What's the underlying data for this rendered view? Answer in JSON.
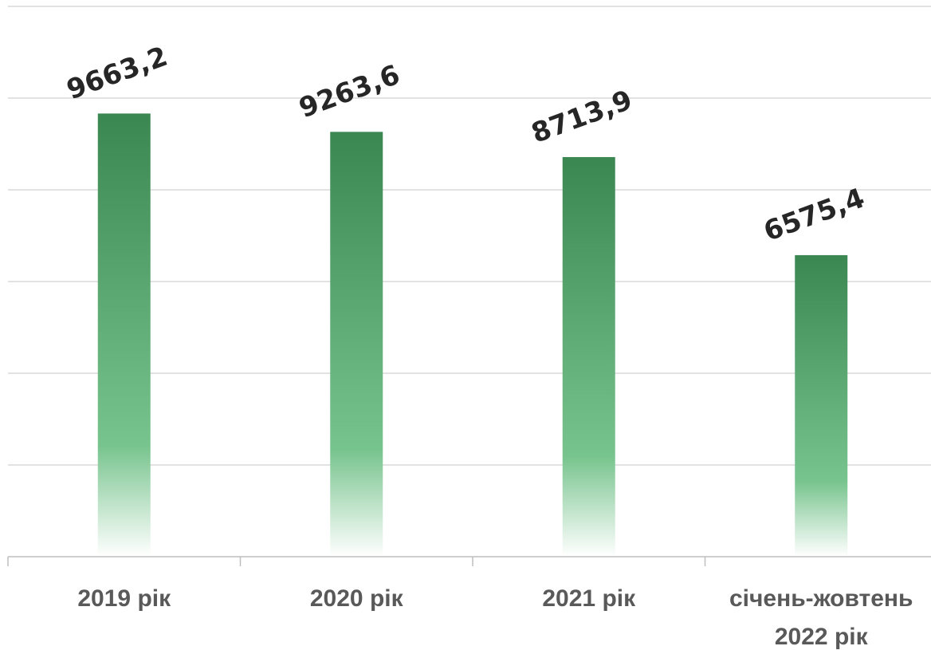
{
  "chart_data": {
    "type": "bar",
    "categories": [
      "2019 рік",
      "2020 рік",
      "2021 рік",
      "січень-жовтень 2022 рік"
    ],
    "category_lines": [
      [
        "2019 рік"
      ],
      [
        "2020 рік"
      ],
      [
        "2021 рік"
      ],
      [
        "січень-жовтень",
        "2022 рік"
      ]
    ],
    "values": [
      9663.2,
      9263.6,
      8713.9,
      6575.4
    ],
    "value_labels": [
      "9663,2",
      "9263,6",
      "8713,9",
      "6575,4"
    ],
    "ylim": [
      0,
      12000
    ],
    "grid": true,
    "colors": {
      "bar_top": "#3b8752",
      "bar_mid": "#78c48e",
      "bar_bottom": "#ffffff",
      "grid": "#d9d9d9",
      "axis": "#bfbfbf"
    }
  }
}
